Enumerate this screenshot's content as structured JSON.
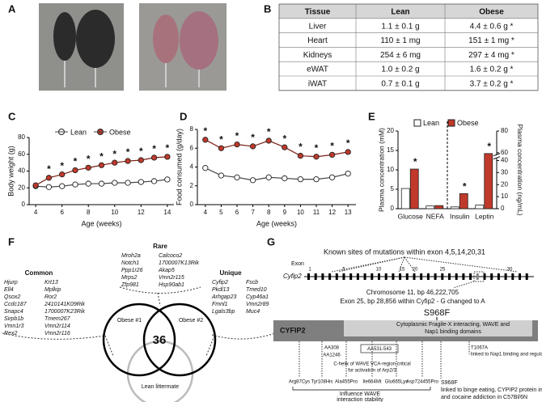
{
  "panel_labels": [
    "A",
    "B",
    "C",
    "D",
    "E",
    "F",
    "G"
  ],
  "table": {
    "header": [
      "Tissue",
      "Lean",
      "Obese"
    ],
    "rows": [
      [
        "Liver",
        "1.1 ± 0.1 g",
        "4.4 ± 0.6 g *"
      ],
      [
        "Heart",
        "110 ± 1 mg",
        "151 ± 1 mg *"
      ],
      [
        "Kidneys",
        "254 ± 6 mg",
        "297 ± 4 mg *"
      ],
      [
        "eWAT",
        "1.0 ± 0.2 g",
        "1.6 ± 0.2 g *"
      ],
      [
        "iWAT",
        "0.7 ± 0.1 g",
        "3.7 ± 0.2 g *"
      ]
    ]
  },
  "chart_data": [
    {
      "type": "line",
      "x_label": "Age (weeks)",
      "y_label": "Body weight (g)",
      "x": [
        4,
        5,
        6,
        7,
        8,
        9,
        10,
        11,
        12,
        13,
        14
      ],
      "xlim": [
        3.5,
        14.5
      ],
      "xticks": [
        4,
        6,
        8,
        10,
        12,
        14
      ],
      "ylim": [
        0,
        80
      ],
      "yticks": [
        0,
        20,
        40,
        60,
        80
      ],
      "legend": "top",
      "series": [
        {
          "name": "Lean",
          "color": "#ffffff",
          "values": [
            22,
            21,
            22,
            24,
            25,
            25,
            26,
            26,
            27,
            28,
            30
          ]
        },
        {
          "name": "Obese",
          "color": "#c0392b",
          "values": [
            23,
            32,
            36,
            41,
            44,
            47,
            50,
            52,
            53,
            56,
            57
          ]
        }
      ],
      "significance_label": "*",
      "significant": [
        false,
        true,
        true,
        true,
        true,
        true,
        true,
        true,
        true,
        true,
        true
      ]
    },
    {
      "type": "line",
      "x_label": "Age (weeks)",
      "y_label": "Food consumed (g/day)",
      "x": [
        4,
        5,
        6,
        7,
        8,
        9,
        10,
        11,
        12,
        13
      ],
      "xlim": [
        3.5,
        13.5
      ],
      "xticks": [
        4,
        5,
        6,
        7,
        8,
        9,
        10,
        11,
        12,
        13
      ],
      "ylim": [
        0,
        8
      ],
      "yticks": [
        0,
        2,
        4,
        6,
        8
      ],
      "series": [
        {
          "name": "Lean",
          "color": "#ffffff",
          "values": [
            3.9,
            3.1,
            2.9,
            2.6,
            2.9,
            2.8,
            2.7,
            2.7,
            2.9,
            3.3
          ]
        },
        {
          "name": "Obese",
          "color": "#c0392b",
          "values": [
            6.9,
            6.0,
            6.4,
            6.2,
            6.8,
            6.1,
            5.2,
            5.1,
            5.3,
            5.6
          ]
        }
      ],
      "significance_label": "*",
      "significant": [
        true,
        true,
        true,
        true,
        true,
        true,
        true,
        true,
        true,
        true
      ]
    },
    {
      "type": "bar",
      "y_label": "Plasma concentration (mM)",
      "y2_label": "Plasma concentration (ng/mL)",
      "categories": [
        "Glucose",
        "NEFA",
        "Insulin",
        "Leptin"
      ],
      "category_axis": [
        "y",
        "y",
        "y2",
        "y2"
      ],
      "ylim": [
        0,
        20
      ],
      "yticks": [
        0,
        5,
        10,
        15,
        20
      ],
      "y2lim": [
        0,
        80
      ],
      "y2ticks": [
        0,
        10,
        20,
        30,
        40,
        60,
        80
      ],
      "y2_break": [
        40,
        60
      ],
      "legend": "top",
      "series": [
        {
          "name": "Lean",
          "color": "#ffffff",
          "values": [
            5.2,
            0.7,
            1.5,
            3
          ]
        },
        {
          "name": "Obese",
          "color": "#c0392b",
          "values": [
            10.2,
            0.8,
            12.5,
            58
          ]
        }
      ],
      "significance_label": "*",
      "significant": [
        true,
        false,
        true,
        true
      ]
    }
  ],
  "venn": {
    "circles": [
      "Obese #1",
      "Obese #2",
      "Lean littermate"
    ],
    "center": "36",
    "rare": {
      "title": "Rare",
      "columns": [
        [
          "Mroh2a",
          "Notch1",
          "Ppp1r26",
          "Mrps2",
          "Zfp981"
        ],
        [
          "Calcoco2",
          "1700007K13Rik",
          "Akap5",
          "Vmn2r115",
          "Hsp90ab1"
        ]
      ]
    },
    "common": {
      "title": "Common",
      "columns": [
        [
          "Hjurp",
          "Ell4",
          "Qsox2",
          "Ccdc187",
          "Snapc4",
          "Sirpb1b",
          "Vmn1r3",
          "Rex2"
        ],
        [
          "Krt13",
          "Mplkip",
          "Ror2",
          "2410141K09Rik",
          "1700007K23Rik",
          "Tmem267",
          "Vmn2r114",
          "Vmn2r116"
        ]
      ]
    },
    "unique": {
      "title": "Unique",
      "columns": [
        [
          "Cyfip2",
          "Pkdl13",
          "Arhgap23",
          "Fmnl1",
          "Lgals3bp"
        ],
        [
          "Fscb",
          "Tmed10",
          "Cyp46a1",
          "Vmn2r89",
          "Muc4"
        ]
      ]
    }
  },
  "gene": {
    "title": "Known sites of mutations within exon 4,5,14,20,31",
    "exon_label": "Exon",
    "exon_numbers": [
      "1",
      "5",
      "10",
      "15",
      "20",
      "25",
      "30"
    ],
    "gene_name": "Cyfip2",
    "location": [
      "Chromosome 11, bp 46,222,705",
      "Exon 25, bp 28,856 within Cyfip2 - G changed to A"
    ],
    "mutation": "S968F",
    "protein": "CYFIP2",
    "domain": [
      "Cytoplasmic Fragile-X interacting, WAVE and",
      "Nap1 binding domains"
    ],
    "aa": [
      "AA308",
      "AA1246"
    ],
    "aa_box": "AA531-543",
    "chelix": [
      "C-helix of WAVE VCA-region critical",
      "for activation of Arp2/3"
    ],
    "t1067": [
      "T1067A",
      "linked to Nap1 binding and regulation of WRC"
    ],
    "variants": [
      "Arg87Cys",
      "Tyr108His",
      "Ala455Pro",
      "Ile664Mt",
      "Glu665Lys",
      "Asp724455Pro"
    ],
    "influence": [
      "Influence WAVE",
      "interaction stability"
    ],
    "s968": [
      "S968F",
      "linked to binge eating, CYPIP2 protein instability",
      "and cocaine addiction in C57Bl/6N"
    ]
  }
}
